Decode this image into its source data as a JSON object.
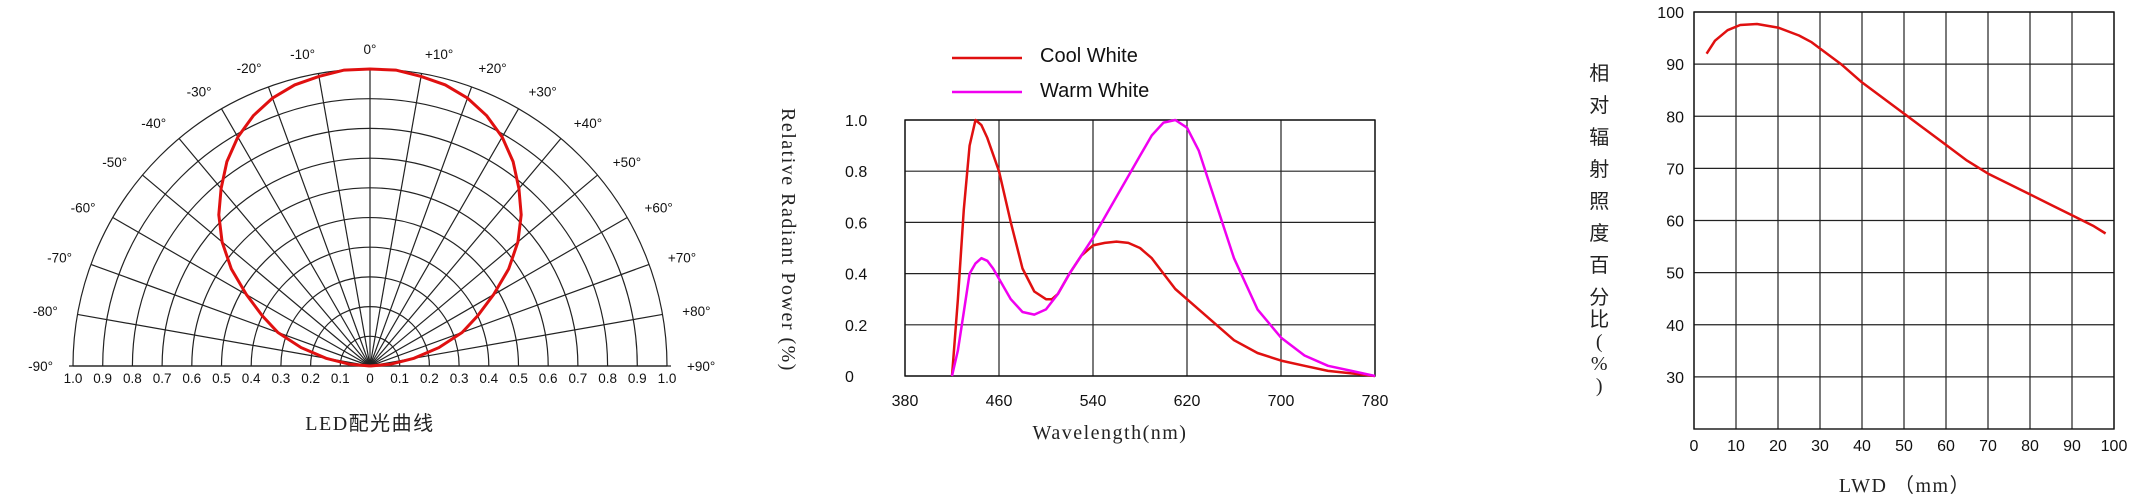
{
  "chart_data": [
    {
      "type": "polar",
      "title": "LED配光曲线",
      "angle_ticks": [
        "-90°",
        "-80°",
        "-70°",
        "-60°",
        "-50°",
        "-40°",
        "-30°",
        "-20°",
        "-10°",
        "0°",
        "+10°",
        "+20°",
        "+30°",
        "+40°",
        "+50°",
        "+60°",
        "+70°",
        "+80°",
        "+90°"
      ],
      "angles": [
        -90,
        -80,
        -70,
        -60,
        -50,
        -40,
        -30,
        -20,
        -10,
        0,
        10,
        20,
        30,
        40,
        50,
        60,
        70,
        80,
        90
      ],
      "radial_ticks_left": [
        "1.0",
        "0.9",
        "0.8",
        "0.7",
        "0.6",
        "0.5",
        "0.4",
        "0.3",
        "0.2",
        "0.1"
      ],
      "radial_tick_center": "0",
      "radial_ticks_right": [
        "0.1",
        "0.2",
        "0.3",
        "0.4",
        "0.5",
        "0.6",
        "0.7",
        "0.8",
        "0.9",
        "1.0"
      ],
      "rlim": [
        0,
        1.0
      ],
      "color": "#e01010",
      "series": [
        {
          "angles": [
            -90,
            -85,
            -80,
            -75,
            -70,
            -65,
            -60,
            -55,
            -50,
            -45,
            -40,
            -35,
            -30,
            -25,
            -20,
            -15,
            -10,
            -5,
            0,
            5,
            10,
            15,
            20,
            25,
            30,
            35,
            40,
            45,
            50,
            55,
            60,
            65,
            70,
            75,
            80,
            85,
            90
          ],
          "values": [
            0.0,
            0.07,
            0.15,
            0.24,
            0.33,
            0.4,
            0.48,
            0.57,
            0.65,
            0.72,
            0.78,
            0.84,
            0.89,
            0.93,
            0.96,
            0.98,
            0.99,
            1.0,
            1.0,
            1.0,
            0.99,
            0.98,
            0.96,
            0.93,
            0.89,
            0.84,
            0.78,
            0.72,
            0.65,
            0.57,
            0.48,
            0.4,
            0.33,
            0.24,
            0.15,
            0.07,
            0.0
          ]
        }
      ]
    },
    {
      "type": "line",
      "xlabel": "Wavelength(nm)",
      "ylabel": "Relative Radiant Power (%)",
      "xlim": [
        380,
        780
      ],
      "ylim": [
        0,
        1.0
      ],
      "x_ticks": [
        "380",
        "460",
        "540",
        "620",
        "700",
        "780"
      ],
      "y_ticks": [
        "0",
        "0.2",
        "0.4",
        "0.6",
        "0.8",
        "1.0"
      ],
      "legend_position": "top",
      "series": [
        {
          "name": "Cool White",
          "color": "#e01010",
          "x": [
            420,
            425,
            430,
            435,
            440,
            445,
            450,
            460,
            470,
            480,
            490,
            500,
            505,
            510,
            520,
            530,
            540,
            550,
            560,
            570,
            580,
            590,
            600,
            610,
            620,
            640,
            660,
            680,
            700,
            720,
            740,
            760,
            780
          ],
          "y": [
            0.0,
            0.3,
            0.65,
            0.9,
            1.0,
            0.98,
            0.93,
            0.8,
            0.6,
            0.42,
            0.33,
            0.3,
            0.3,
            0.32,
            0.4,
            0.47,
            0.51,
            0.52,
            0.525,
            0.52,
            0.5,
            0.46,
            0.4,
            0.34,
            0.3,
            0.22,
            0.14,
            0.09,
            0.06,
            0.04,
            0.02,
            0.01,
            0.0
          ]
        },
        {
          "name": "Warm White",
          "color": "#f000f0",
          "x": [
            420,
            425,
            430,
            435,
            440,
            445,
            450,
            455,
            460,
            470,
            480,
            490,
            500,
            510,
            520,
            540,
            560,
            580,
            590,
            600,
            610,
            620,
            630,
            640,
            660,
            680,
            700,
            720,
            740,
            760,
            780
          ],
          "y": [
            0.0,
            0.1,
            0.25,
            0.4,
            0.44,
            0.46,
            0.45,
            0.42,
            0.38,
            0.3,
            0.25,
            0.24,
            0.26,
            0.32,
            0.4,
            0.54,
            0.7,
            0.86,
            0.94,
            0.99,
            1.0,
            0.97,
            0.88,
            0.74,
            0.46,
            0.26,
            0.15,
            0.08,
            0.04,
            0.02,
            0.0
          ]
        }
      ]
    },
    {
      "type": "line",
      "xlabel": "LWD （mm）",
      "ylabel": "相对辐射照度百分比(%)",
      "xlim": [
        0,
        100
      ],
      "ylim": [
        20,
        100
      ],
      "x_ticks": [
        "0",
        "10",
        "20",
        "30",
        "40",
        "50",
        "60",
        "70",
        "80",
        "90",
        "100"
      ],
      "y_ticks": [
        "30",
        "40",
        "50",
        "60",
        "70",
        "80",
        "90",
        "100"
      ],
      "series": [
        {
          "color": "#e01010",
          "x": [
            3,
            5,
            8,
            11,
            15,
            20,
            25,
            28,
            30,
            35,
            40,
            45,
            50,
            55,
            60,
            65,
            70,
            75,
            80,
            85,
            90,
            95,
            98
          ],
          "y": [
            92,
            94.5,
            96.5,
            97.5,
            97.7,
            97,
            95.5,
            94.2,
            93,
            90,
            86.5,
            83.5,
            80.5,
            77.5,
            74.5,
            71.5,
            69,
            67,
            65,
            63,
            61,
            59,
            57.5
          ]
        }
      ]
    }
  ]
}
